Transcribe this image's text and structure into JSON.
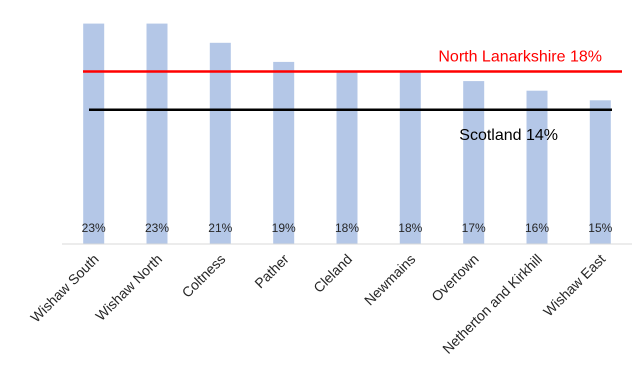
{
  "chart_data": {
    "type": "bar",
    "title": "",
    "xlabel": "",
    "ylabel": "",
    "categories": [
      "Wishaw South",
      "Wishaw North",
      "Coltness",
      "Pather",
      "Cleland",
      "Newmains",
      "Overtown",
      "Netherton and Kirkhill",
      "Wishaw East"
    ],
    "values": [
      23,
      23,
      21,
      19,
      18,
      18,
      17,
      16,
      15
    ],
    "data_labels": [
      "23%",
      "23%",
      "21%",
      "19%",
      "18%",
      "18%",
      "17%",
      "16%",
      "15%"
    ],
    "bar_color": "#b4c7e7",
    "ylim": [
      0,
      24
    ],
    "grid": false,
    "reference_lines": [
      {
        "label": "North Lanarkshire 18%",
        "value": 18,
        "color": "#ff0000"
      },
      {
        "label": "Scotland 14%",
        "value": 14,
        "color": "#000000"
      }
    ]
  }
}
